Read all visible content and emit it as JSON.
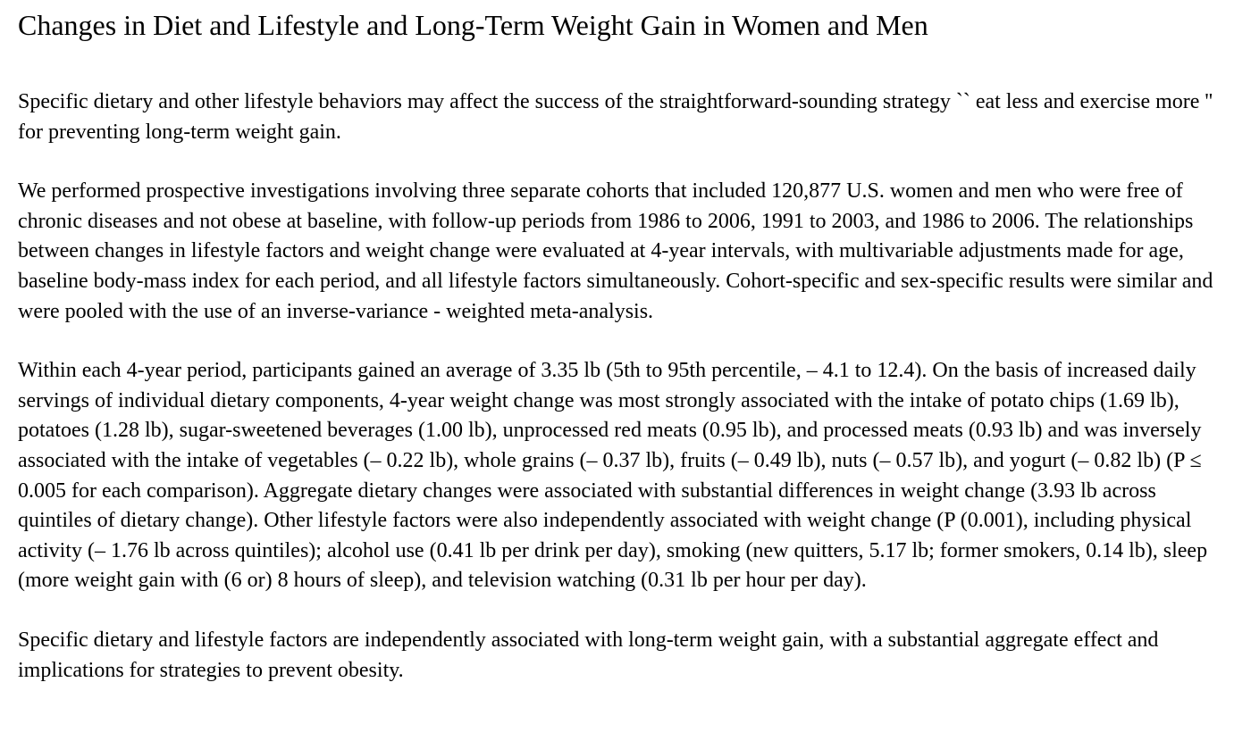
{
  "document": {
    "title": "Changes in Diet and Lifestyle and Long-Term Weight Gain in Women and Men",
    "paragraphs": [
      "Specific dietary and other lifestyle behaviors may affect the success of the straightforward-sounding strategy `` eat less and exercise more '' for preventing long-term weight gain.",
      "We performed prospective investigations involving three separate cohorts that included 120,877 U.S. women and men who were free of chronic diseases and not obese at baseline, with follow-up periods from 1986 to 2006, 1991 to 2003, and 1986 to 2006. The relationships between changes in lifestyle factors and weight change were evaluated at 4-year intervals, with multivariable adjustments made for age, baseline body-mass index for each period, and all lifestyle factors simultaneously. Cohort-specific and sex-specific results were similar and were pooled with the use of an inverse-variance - weighted meta-analysis.",
      "Within each 4-year period, participants gained an average of 3.35 lb (5th to 95th percentile, – 4.1 to 12.4). On the basis of increased daily servings of individual dietary components, 4-year weight change was most strongly associated with the intake of potato chips (1.69 lb), potatoes (1.28 lb), sugar-sweetened beverages (1.00 lb), unprocessed red meats (0.95 lb), and processed meats (0.93 lb) and was inversely associated with the intake of vegetables (– 0.22 lb), whole grains (– 0.37 lb), fruits (– 0.49 lb), nuts (– 0.57 lb), and yogurt (– 0.82 lb) (P ≤ 0.005 for each comparison). Aggregate dietary changes were associated with substantial differences in weight change (3.93 lb across quintiles of dietary change). Other lifestyle factors were also independently associated with weight change (P (0.001), including physical activity (– 1.76 lb across quintiles); alcohol use (0.41 lb per drink per day), smoking (new quitters, 5.17 lb; former smokers, 0.14 lb), sleep (more weight gain with (6 or) 8 hours of sleep), and television watching (0.31 lb per hour per day).",
      "Specific dietary and lifestyle factors are independently associated with long-term weight gain, with a substantial aggregate effect and implications for strategies to prevent obesity."
    ]
  }
}
